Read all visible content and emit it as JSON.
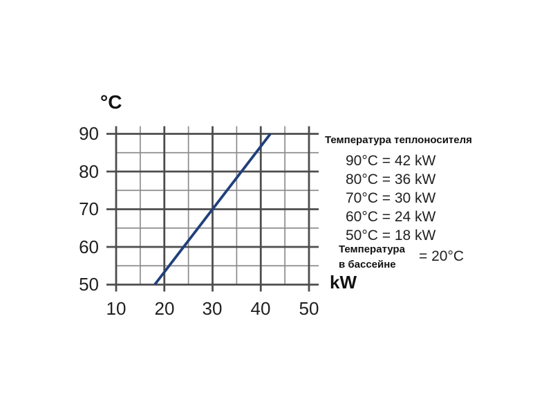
{
  "chart_data": {
    "type": "line",
    "title": "",
    "xlabel": "kW",
    "ylabel": "°C",
    "xlim": [
      10,
      50
    ],
    "ylim": [
      50,
      90
    ],
    "major_step": 10,
    "minor_step": 5,
    "grid": "on",
    "xtick_labels": [
      "10",
      "20",
      "30",
      "40",
      "50"
    ],
    "ytick_labels": [
      "90",
      "80",
      "70",
      "60",
      "50"
    ],
    "series": [
      {
        "name": "heater-output-line",
        "color": "#20407a",
        "points": [
          [
            18,
            50
          ],
          [
            42,
            90
          ]
        ]
      }
    ]
  },
  "panel": {
    "title": "Температура теплоносителя",
    "lines": [
      "90°C = 42 kW",
      "80°C = 36 kW",
      "70°C = 30 kW",
      "60°C = 24 kW",
      "50°C = 18 kW"
    ],
    "pool": {
      "label_line1": "Температура",
      "label_line2": "в бассейне",
      "value": "= 20°C"
    }
  },
  "colors": {
    "grid_major": "#4d4d4d",
    "grid_minor": "#8c8c8c",
    "line": "#20407a",
    "text": "#1a1a1a"
  }
}
